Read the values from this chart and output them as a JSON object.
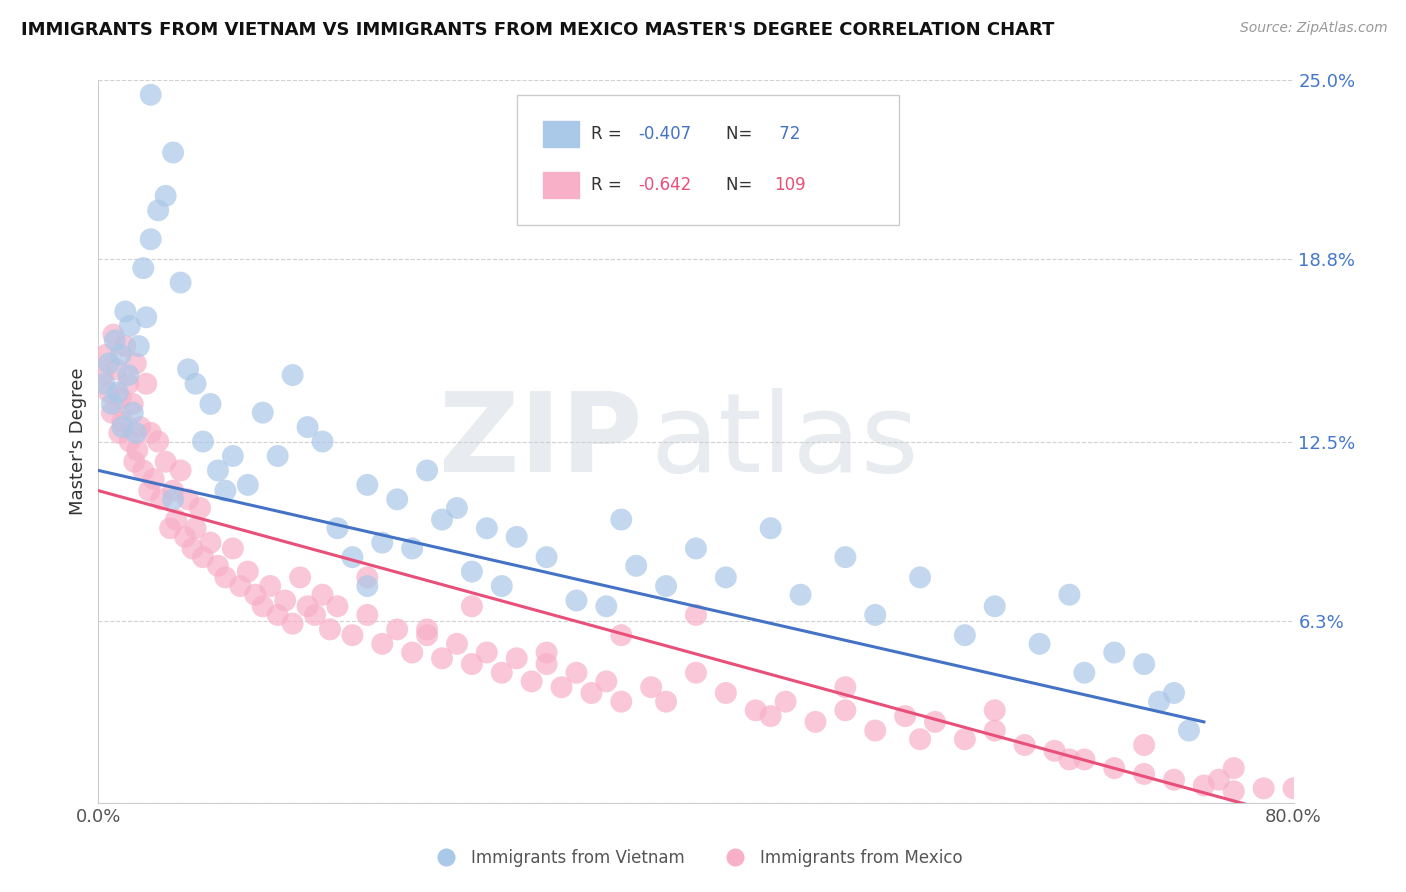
{
  "title": "IMMIGRANTS FROM VIETNAM VS IMMIGRANTS FROM MEXICO MASTER'S DEGREE CORRELATION CHART",
  "source": "Source: ZipAtlas.com",
  "ylabel": "Master's Degree",
  "xlim": [
    0.0,
    80.0
  ],
  "ylim": [
    0.0,
    25.0
  ],
  "yticks": [
    0.0,
    6.3,
    12.5,
    18.8,
    25.0
  ],
  "ytick_labels": [
    "",
    "6.3%",
    "12.5%",
    "18.8%",
    "25.0%"
  ],
  "xtick_vals": [
    0.0,
    80.0
  ],
  "xtick_labels": [
    "0.0%",
    "80.0%"
  ],
  "vietnam_R": -0.407,
  "vietnam_N": 72,
  "mexico_R": -0.642,
  "mexico_N": 109,
  "vietnam_color": "#aac8e8",
  "mexico_color": "#f8b0c8",
  "vietnam_line_color": "#4472c4",
  "mexico_line_color": "#e8507a",
  "legend_label_vietnam": "Immigrants from Vietnam",
  "legend_label_mexico": "Immigrants from Mexico",
  "viet_line": [
    0,
    11.5,
    74,
    2.8
  ],
  "mex_line": [
    0,
    10.8,
    80,
    -0.5
  ],
  "vietnam_x": [
    0.4,
    0.7,
    0.9,
    1.1,
    1.3,
    1.5,
    1.6,
    1.8,
    2.0,
    2.1,
    2.3,
    2.5,
    2.7,
    3.0,
    3.2,
    3.5,
    4.0,
    4.5,
    5.0,
    5.5,
    6.0,
    6.5,
    7.0,
    7.5,
    8.0,
    8.5,
    9.0,
    10.0,
    11.0,
    12.0,
    13.0,
    14.0,
    15.0,
    16.0,
    17.0,
    18.0,
    19.0,
    20.0,
    21.0,
    22.0,
    23.0,
    24.0,
    25.0,
    26.0,
    27.0,
    28.0,
    30.0,
    32.0,
    34.0,
    35.0,
    36.0,
    38.0,
    40.0,
    42.0,
    45.0,
    47.0,
    50.0,
    52.0,
    55.0,
    58.0,
    60.0,
    63.0,
    65.0,
    66.0,
    68.0,
    70.0,
    71.0,
    72.0,
    73.0,
    18.0,
    5.0,
    3.5
  ],
  "vietnam_y": [
    14.5,
    15.2,
    13.8,
    16.0,
    14.2,
    15.5,
    13.0,
    17.0,
    14.8,
    16.5,
    13.5,
    12.8,
    15.8,
    18.5,
    16.8,
    19.5,
    20.5,
    21.0,
    22.5,
    18.0,
    15.0,
    14.5,
    12.5,
    13.8,
    11.5,
    10.8,
    12.0,
    11.0,
    13.5,
    12.0,
    14.8,
    13.0,
    12.5,
    9.5,
    8.5,
    11.0,
    9.0,
    10.5,
    8.8,
    11.5,
    9.8,
    10.2,
    8.0,
    9.5,
    7.5,
    9.2,
    8.5,
    7.0,
    6.8,
    9.8,
    8.2,
    7.5,
    8.8,
    7.8,
    9.5,
    7.2,
    8.5,
    6.5,
    7.8,
    5.8,
    6.8,
    5.5,
    7.2,
    4.5,
    5.2,
    4.8,
    3.5,
    3.8,
    2.5,
    7.5,
    10.5,
    24.5
  ],
  "mexico_x": [
    0.3,
    0.5,
    0.7,
    0.9,
    1.0,
    1.2,
    1.4,
    1.5,
    1.6,
    1.8,
    2.0,
    2.1,
    2.3,
    2.4,
    2.5,
    2.6,
    2.8,
    3.0,
    3.2,
    3.4,
    3.5,
    3.7,
    4.0,
    4.2,
    4.5,
    4.8,
    5.0,
    5.2,
    5.5,
    5.8,
    6.0,
    6.3,
    6.5,
    6.8,
    7.0,
    7.5,
    8.0,
    8.5,
    9.0,
    9.5,
    10.0,
    10.5,
    11.0,
    11.5,
    12.0,
    12.5,
    13.0,
    13.5,
    14.0,
    14.5,
    15.0,
    15.5,
    16.0,
    17.0,
    18.0,
    19.0,
    20.0,
    21.0,
    22.0,
    23.0,
    24.0,
    25.0,
    26.0,
    27.0,
    28.0,
    29.0,
    30.0,
    31.0,
    32.0,
    33.0,
    34.0,
    35.0,
    37.0,
    38.0,
    40.0,
    42.0,
    44.0,
    46.0,
    48.0,
    50.0,
    52.0,
    54.0,
    56.0,
    58.0,
    60.0,
    62.0,
    64.0,
    66.0,
    68.0,
    70.0,
    72.0,
    74.0,
    76.0,
    78.0,
    40.0,
    35.0,
    30.0,
    45.0,
    55.0,
    65.0,
    75.0,
    18.0,
    25.0,
    50.0,
    60.0,
    70.0,
    76.0,
    80.0,
    22.0
  ],
  "mexico_y": [
    14.8,
    15.5,
    14.2,
    13.5,
    16.2,
    15.0,
    12.8,
    14.0,
    13.2,
    15.8,
    14.5,
    12.5,
    13.8,
    11.8,
    15.2,
    12.2,
    13.0,
    11.5,
    14.5,
    10.8,
    12.8,
    11.2,
    12.5,
    10.5,
    11.8,
    9.5,
    10.8,
    9.8,
    11.5,
    9.2,
    10.5,
    8.8,
    9.5,
    10.2,
    8.5,
    9.0,
    8.2,
    7.8,
    8.8,
    7.5,
    8.0,
    7.2,
    6.8,
    7.5,
    6.5,
    7.0,
    6.2,
    7.8,
    6.8,
    6.5,
    7.2,
    6.0,
    6.8,
    5.8,
    6.5,
    5.5,
    6.0,
    5.2,
    5.8,
    5.0,
    5.5,
    4.8,
    5.2,
    4.5,
    5.0,
    4.2,
    4.8,
    4.0,
    4.5,
    3.8,
    4.2,
    3.5,
    4.0,
    3.5,
    4.5,
    3.8,
    3.2,
    3.5,
    2.8,
    3.2,
    2.5,
    3.0,
    2.8,
    2.2,
    2.5,
    2.0,
    1.8,
    1.5,
    1.2,
    1.0,
    0.8,
    0.6,
    0.4,
    0.5,
    6.5,
    5.8,
    5.2,
    3.0,
    2.2,
    1.5,
    0.8,
    7.8,
    6.8,
    4.0,
    3.2,
    2.0,
    1.2,
    0.5,
    6.0
  ]
}
